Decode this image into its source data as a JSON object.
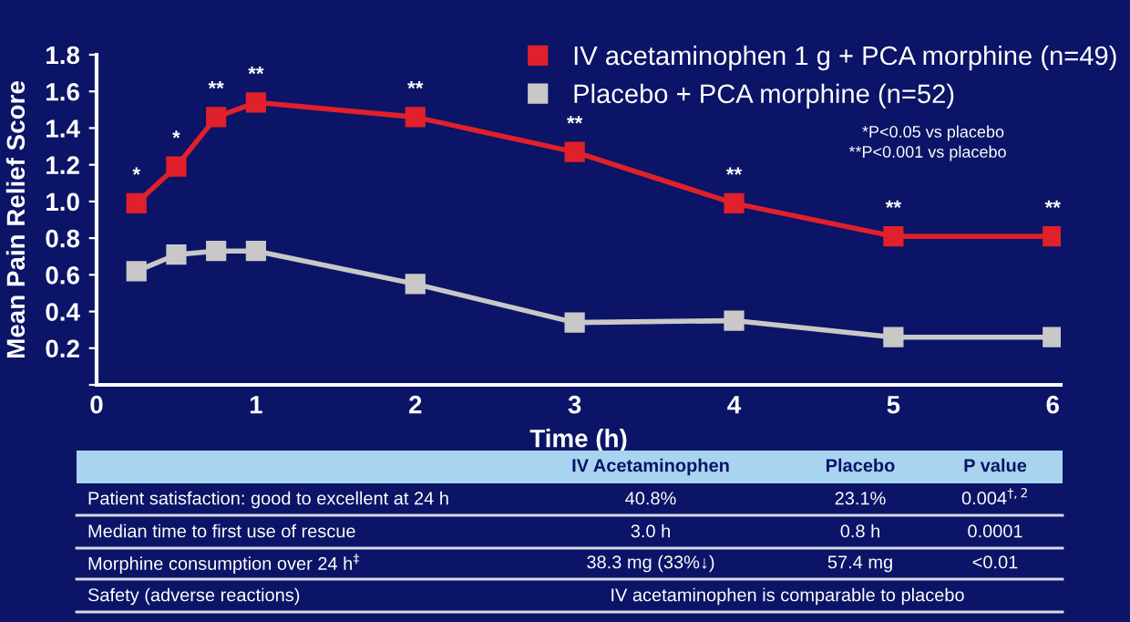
{
  "chart_data": {
    "type": "line",
    "xlabel": "Time (h)",
    "ylabel": "Mean Pain Relief Score",
    "x": [
      0.25,
      0.5,
      0.75,
      1,
      2,
      3,
      4,
      5,
      6
    ],
    "series": [
      {
        "name": "IV acetaminophen 1 g + PCA morphine (n=49)",
        "color": "#e0202a",
        "values": [
          0.99,
          1.19,
          1.46,
          1.54,
          1.46,
          1.27,
          0.99,
          0.81,
          0.81
        ]
      },
      {
        "name": "Placebo + PCA morphine (n=52)",
        "color": "#c8c8c8",
        "values": [
          0.62,
          0.71,
          0.73,
          0.73,
          0.55,
          0.34,
          0.35,
          0.26,
          0.26
        ]
      }
    ],
    "xlim": [
      0,
      6.05
    ],
    "ylim": [
      0,
      1.8
    ],
    "xticks": [
      0,
      1,
      2,
      3,
      4,
      5,
      6
    ],
    "yticks": [
      {
        "value": 0,
        "label": null
      },
      {
        "value": 0.2,
        "label": "0.2"
      },
      {
        "value": 0.4,
        "label": "0.4"
      },
      {
        "value": 0.6,
        "label": "0.6"
      },
      {
        "value": 0.8,
        "label": "0.8"
      },
      {
        "value": 1.0,
        "label": "1.0"
      },
      {
        "value": 1.2,
        "label": "1.2"
      },
      {
        "value": 1.4,
        "label": "1.4"
      },
      {
        "value": 1.6,
        "label": "1.6"
      },
      {
        "value": 1.8,
        "label": "1.8"
      }
    ],
    "grid": false,
    "legend": "top right",
    "marker": "square",
    "line_style": "solid",
    "annotations": [
      {
        "text": "*",
        "x": 0.25,
        "y": 0.99
      },
      {
        "text": "*",
        "x": 0.5,
        "y": 1.19
      },
      {
        "text": "**",
        "x": 0.75,
        "y": 1.46
      },
      {
        "text": "**",
        "x": 1,
        "y": 1.54
      },
      {
        "text": "**",
        "x": 2,
        "y": 1.46
      },
      {
        "text": "**",
        "x": 3,
        "y": 1.27
      },
      {
        "text": "**",
        "x": 4,
        "y": 0.99
      },
      {
        "text": "**",
        "x": 5,
        "y": 0.81
      },
      {
        "text": "**",
        "x": 6,
        "y": 0.81
      },
      "*P<0.05 vs placebo",
      "**P<0.001 vs placebo",
      "IV Acetaminophen",
      "Placebo",
      "P value",
      "Patient satisfaction: good to excellent at 24 h",
      "40.8%",
      "23.1%",
      "0.004$^{†,2}$",
      "Median time to first use of rescue",
      "3.0 h",
      "0.8 h",
      "0.0001",
      "Morphine consumption over 24 h$^{‡}$",
      "38.3 mg (33%↓)",
      "57.4 mg",
      "<0.01",
      "Safety (adverse reactions)",
      "IV acetaminophen is comparable to placebo"
    ]
  }
}
